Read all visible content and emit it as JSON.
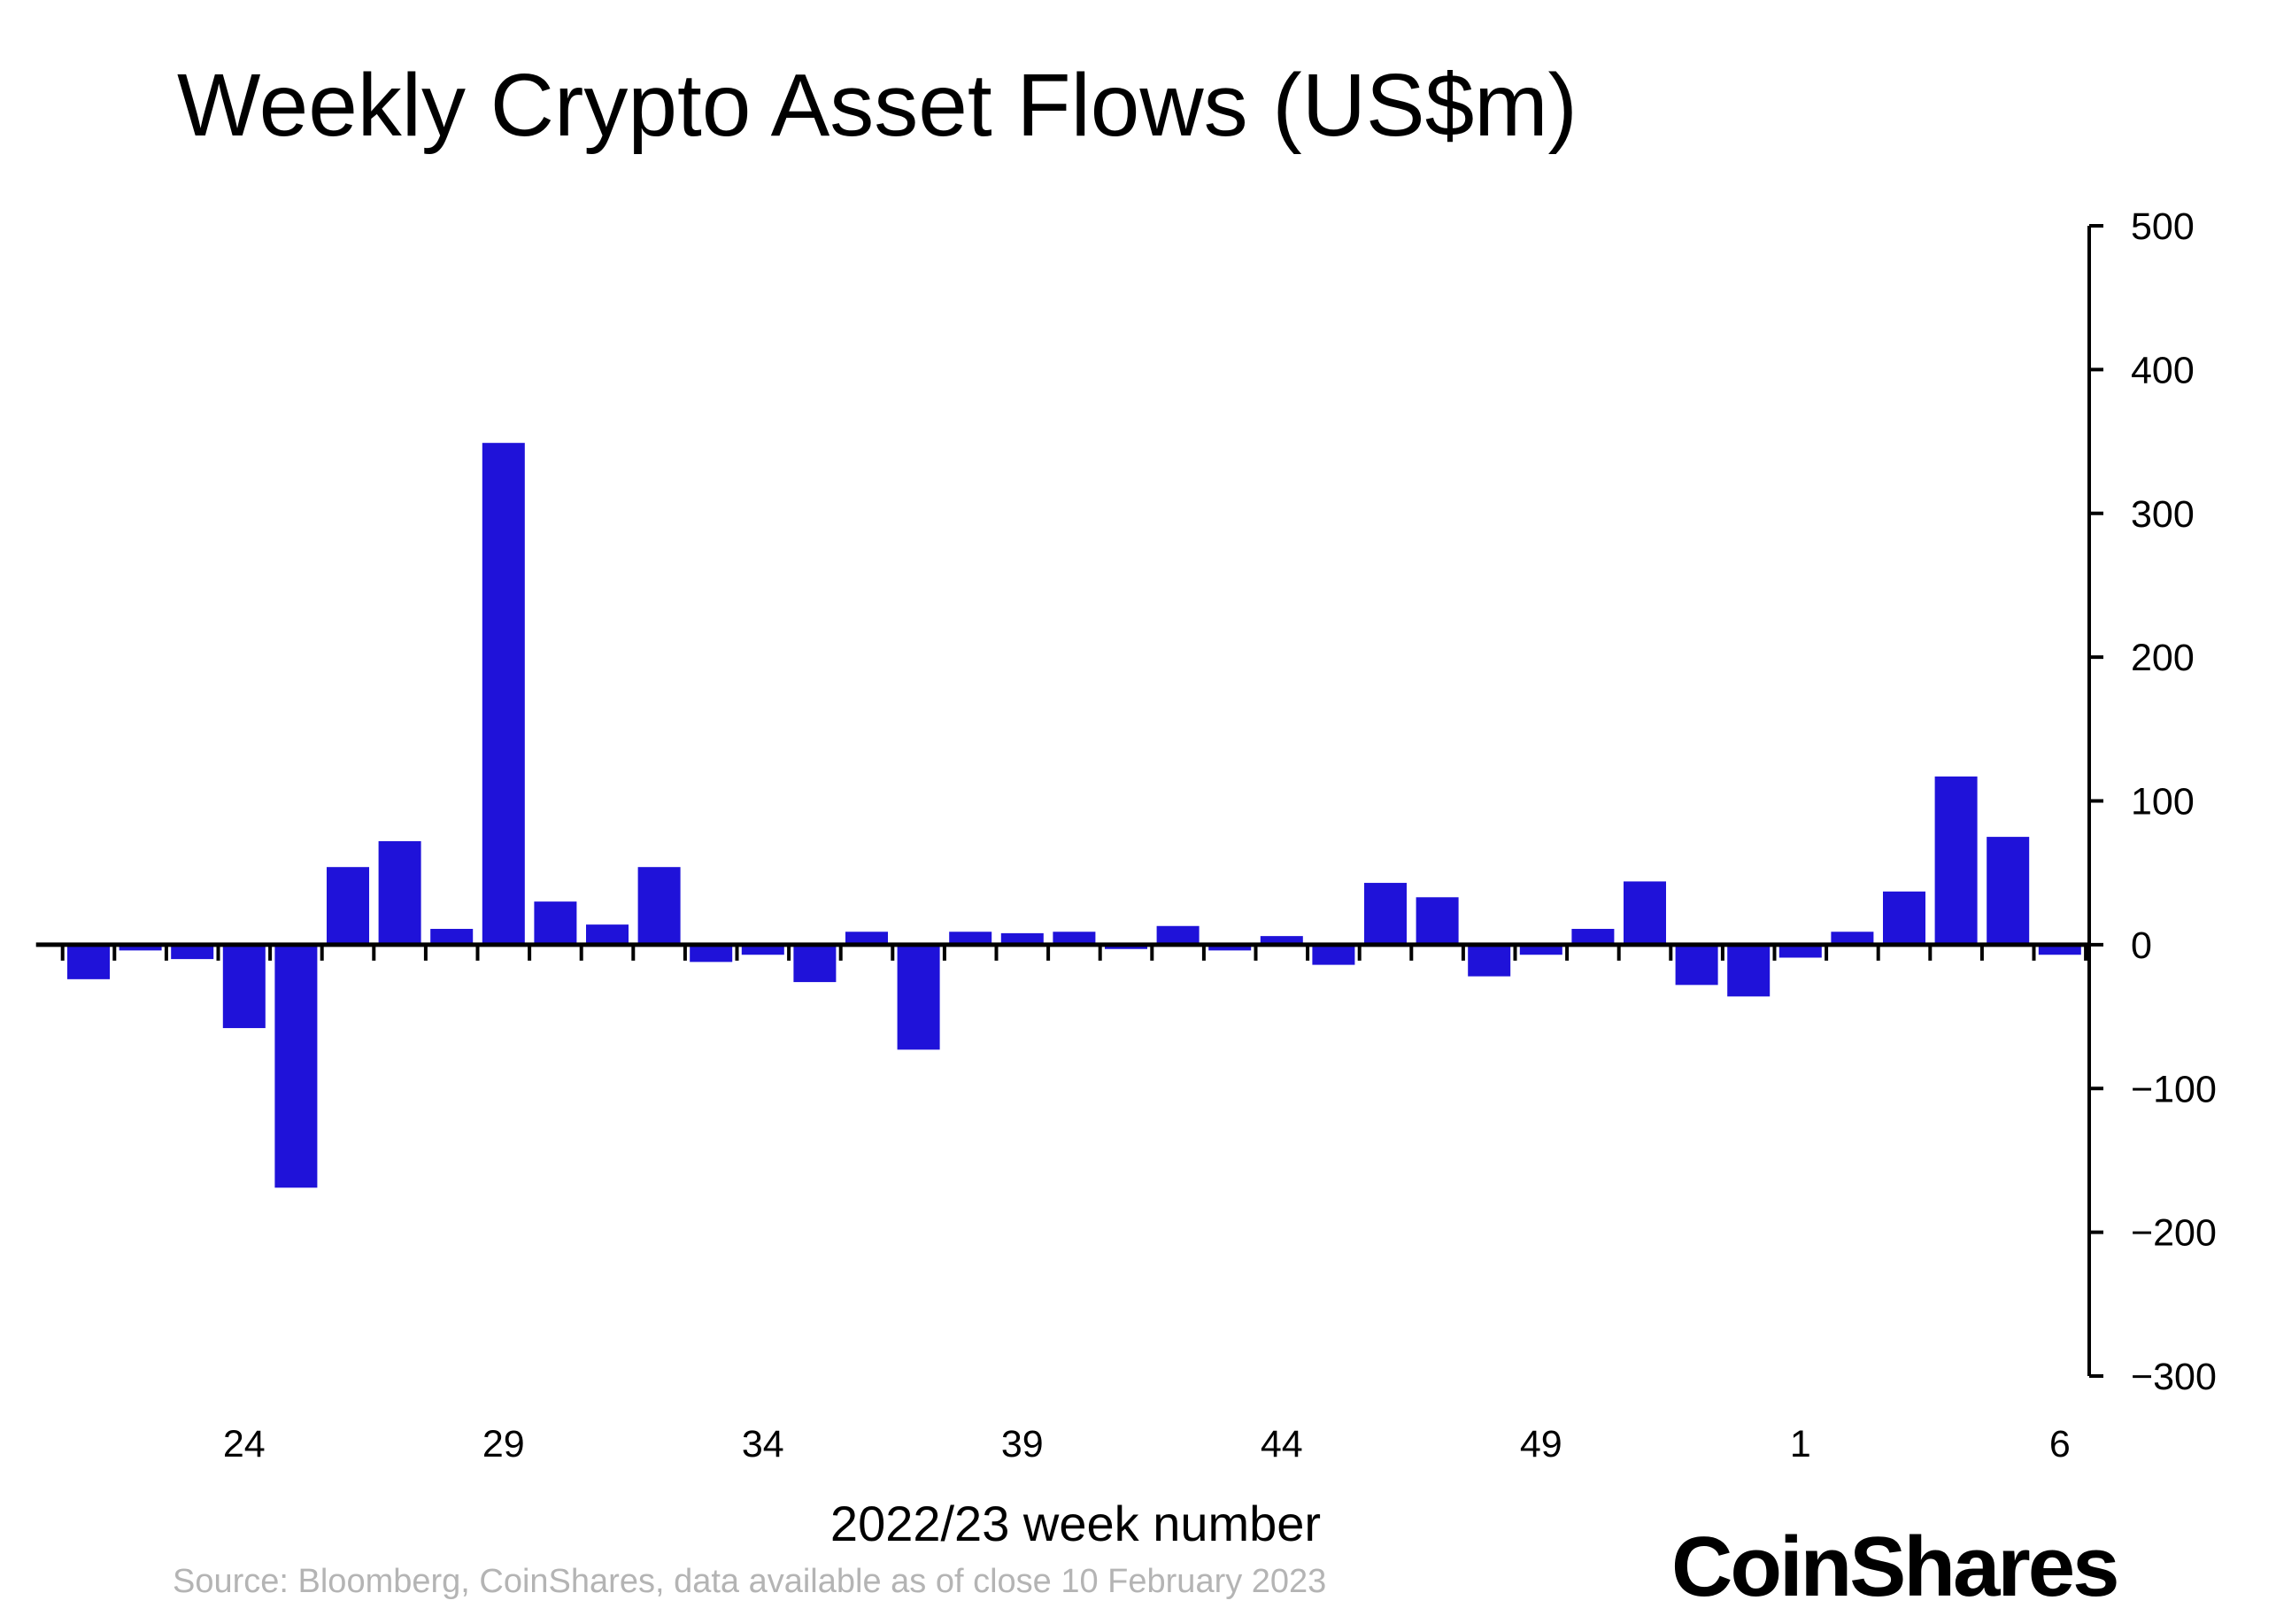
{
  "chart_data": {
    "type": "bar",
    "title": "Weekly Crypto Asset Flows (US$m)",
    "xlabel": "2022/23 week number",
    "ylabel": "",
    "ylim": [
      -300,
      500
    ],
    "yticks": [
      500,
      400,
      300,
      200,
      100,
      0,
      -100,
      -200,
      -300
    ],
    "ytick_labels": [
      "500",
      "400",
      "300",
      "200",
      "100",
      "0",
      "−100",
      "−200",
      "−300"
    ],
    "y_axis_position": "right",
    "grid": false,
    "categories": [
      "21",
      "22",
      "23",
      "24",
      "25",
      "26",
      "27",
      "28",
      "29",
      "30",
      "31",
      "32",
      "33",
      "34",
      "35",
      "36",
      "37",
      "38",
      "39",
      "40",
      "41",
      "42",
      "43",
      "44",
      "45",
      "46",
      "47",
      "48",
      "49",
      "50",
      "51",
      "52",
      "53",
      "1",
      "2",
      "3",
      "4",
      "5",
      "6"
    ],
    "values": [
      -24,
      -4,
      -10,
      -58,
      -169,
      54,
      72,
      11,
      349,
      30,
      14,
      54,
      -12,
      -7,
      -26,
      9,
      -73,
      9,
      8,
      9,
      -3,
      13,
      -4,
      6,
      -14,
      43,
      33,
      -22,
      -7,
      11,
      44,
      -28,
      -36,
      -9,
      9,
      37,
      117,
      75,
      -7
    ],
    "xtick_labels": [
      "24",
      "29",
      "34",
      "39",
      "44",
      "49",
      "1",
      "6"
    ],
    "bar_color": "#1f12d9"
  },
  "source": "Source: Bloomberg, CoinShares, data available as of close 10 February 2023",
  "logo": "CoinShares"
}
